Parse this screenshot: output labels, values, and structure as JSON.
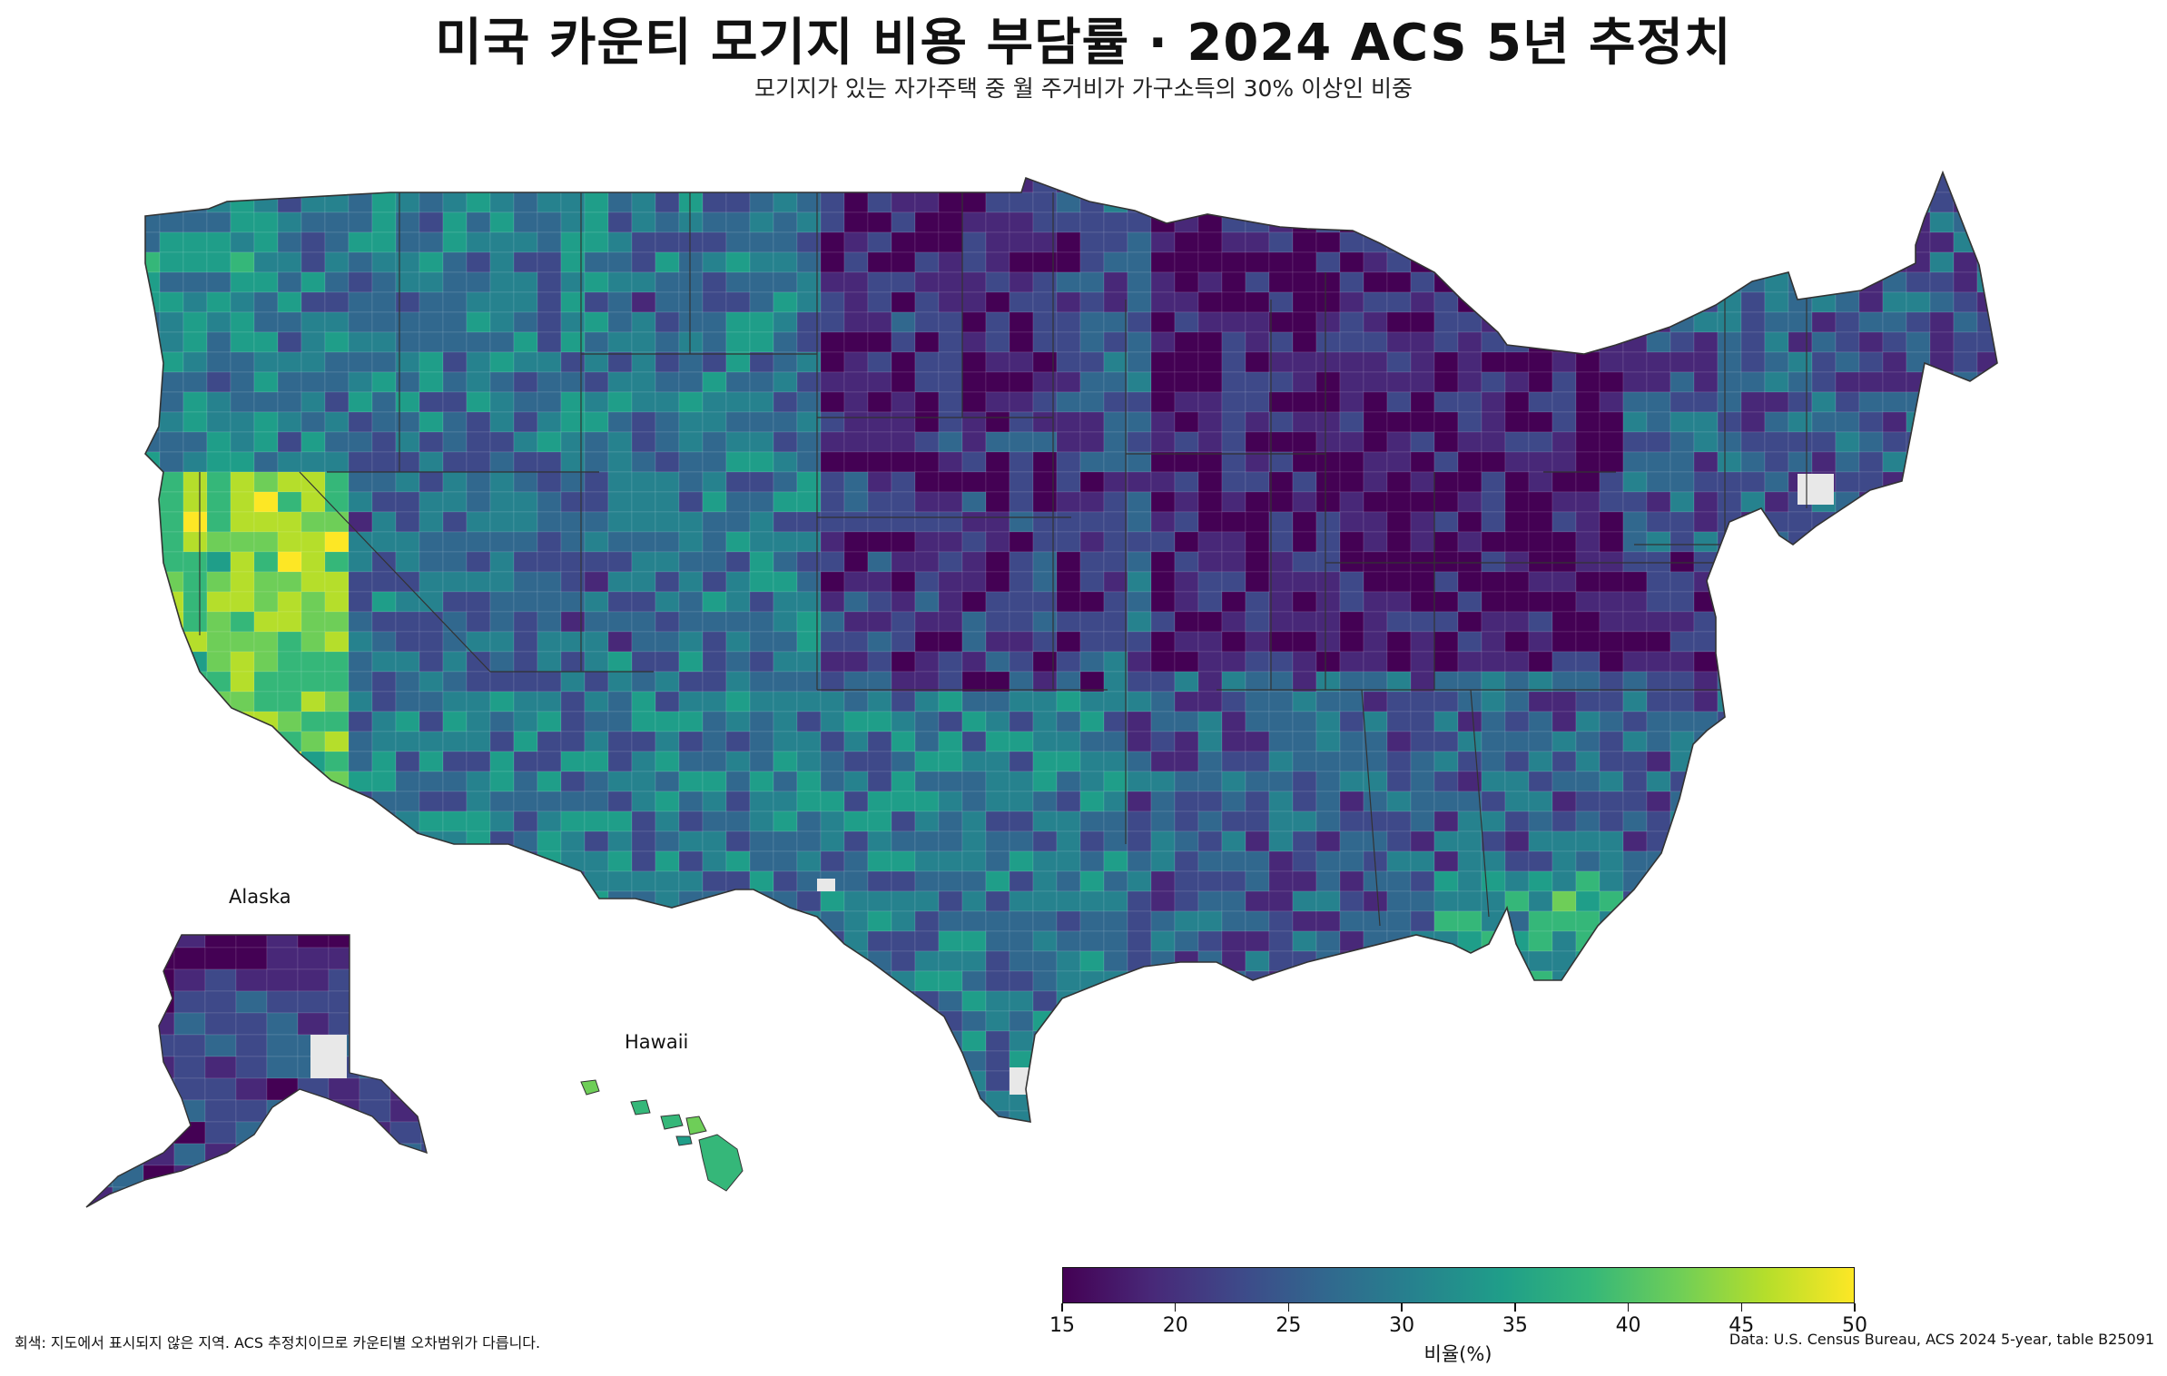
{
  "header": {
    "title": "미국 카운티 모기지 비용 부담률 · 2024 ACS 5년 추정치",
    "subtitle": "모기지가 있는 자가주택 중 월 주거비가 가구소득의 30% 이상인 비중"
  },
  "map": {
    "region_labels": {
      "alaska": "Alaska",
      "hawaii": "Hawaii"
    },
    "no_data_color": "#e8e8e8",
    "border_color": "#333333",
    "palette": [
      "#440154",
      "#482878",
      "#3e4989",
      "#31688e",
      "#26828e",
      "#1f9e89",
      "#35b779",
      "#6ece58",
      "#b5de2b",
      "#fde725"
    ],
    "regional_levels": {
      "northwest": 0.45,
      "california_coast": 0.75,
      "great_basin": 0.35,
      "southwest": 0.4,
      "rockies": 0.38,
      "northern_plains": 0.15,
      "central_plains": 0.2,
      "midwest": 0.12,
      "appalachia": 0.1,
      "south": 0.3,
      "texas": 0.4,
      "florida": 0.55,
      "northeast": 0.3,
      "alaska": 0.2,
      "hawaii": 0.7
    }
  },
  "legend": {
    "min": 15,
    "max": 50,
    "ticks": [
      "15",
      "20",
      "25",
      "30",
      "35",
      "40",
      "45",
      "50"
    ],
    "label": "비율(%)",
    "colormap": "viridis"
  },
  "footnote": "회색: 지도에서 표시되지 않은 지역. ACS 추정치이므로 카운티별 오차범위가 다릅니다.",
  "source": "Data: U.S. Census Bureau, ACS 2024 5-year, table B25091"
}
